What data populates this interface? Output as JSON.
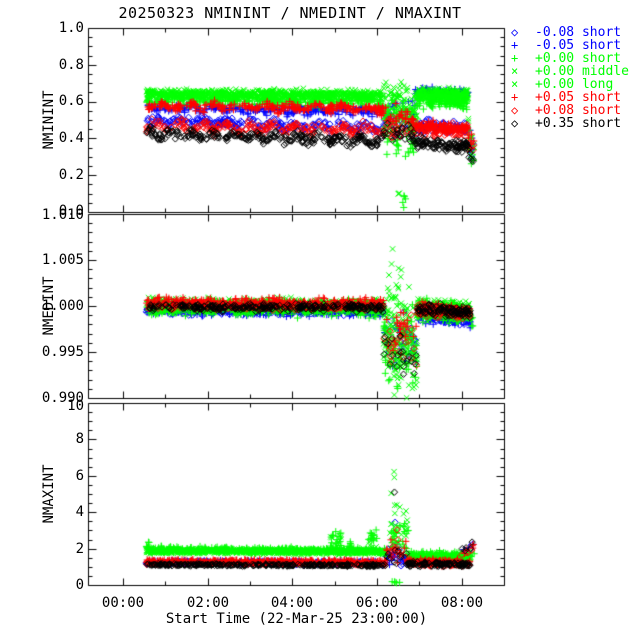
{
  "chart_data": {
    "type": "scatter",
    "title": "20250323 NMININT / NMEDINT / NMAXINT",
    "xlabel": "Start Time (22-Mar-25 23:00:00)",
    "x_axis_origin": "22-Mar-25 23:00:00",
    "xlim_hours": [
      0.17,
      10.0
    ],
    "x_ticks": [
      {
        "t": 1,
        "label": "00:00"
      },
      {
        "t": 3,
        "label": "02:00"
      },
      {
        "t": 5,
        "label": "04:00"
      },
      {
        "t": 7,
        "label": "06:00"
      },
      {
        "t": 9,
        "label": "08:00"
      }
    ],
    "x_minor_step_hours": 1,
    "grid": false,
    "legend_position": "right",
    "series": [
      {
        "label": "-0.08 short",
        "color": "#0000ff",
        "marker": "diamond",
        "glyph": "◇"
      },
      {
        "label": "-0.05 short",
        "color": "#0000ff",
        "marker": "plus",
        "glyph": "+"
      },
      {
        "label": "+0.00 short",
        "color": "#00ff00",
        "marker": "plus",
        "glyph": "+"
      },
      {
        "label": "+0.00 middle",
        "color": "#00ff00",
        "marker": "cross",
        "glyph": "×"
      },
      {
        "label": "+0.00 long",
        "color": "#00ff00",
        "marker": "cross",
        "glyph": "×"
      },
      {
        "label": "+0.05 short",
        "color": "#ff0000",
        "marker": "plus",
        "glyph": "+"
      },
      {
        "label": "+0.08 short",
        "color": "#ff0000",
        "marker": "diamond",
        "glyph": "◇"
      },
      {
        "label": "+0.35 short",
        "color": "#000000",
        "marker": "diamond",
        "glyph": "◇"
      }
    ],
    "panels": [
      {
        "name": "NMININT",
        "ylabel": "NMININT",
        "ylim": [
          0.0,
          1.0
        ],
        "y_minor_step": 0.05,
        "yticks": [
          {
            "v": 1.0,
            "label": "1.0"
          },
          {
            "v": 0.8,
            "label": "0.8"
          },
          {
            "v": 0.6,
            "label": "0.6"
          },
          {
            "v": 0.4,
            "label": "0.4"
          },
          {
            "v": 0.2,
            "label": "0.2"
          },
          {
            "v": 0.0,
            "label": "0.0"
          }
        ],
        "bands": [
          [
            [
              1.55,
              7.15,
              240,
              0.5,
              0.455,
              0.022,
              0.015,
              0.55
            ],
            [
              7.15,
              7.9,
              28,
              0.47,
              0.46,
              0.05
            ],
            [
              7.9,
              9.15,
              95,
              0.47,
              0.455,
              0.028
            ],
            [
              9.15,
              9.3,
              6,
              0.4,
              0.32,
              0.04
            ]
          ],
          [
            [
              1.55,
              7.15,
              240,
              0.565,
              0.545,
              0.018,
              0.01,
              0.5
            ],
            [
              7.15,
              7.9,
              28,
              0.54,
              0.55,
              0.05
            ],
            [
              7.9,
              9.15,
              105,
              0.655,
              0.645,
              0.02
            ],
            [
              9.15,
              9.3,
              6,
              0.45,
              0.34,
              0.05
            ]
          ],
          [
            [
              1.55,
              7.15,
              320,
              0.606,
              0.6,
              0.022
            ],
            [
              7.15,
              7.95,
              65,
              0.48,
              0.43,
              0.16
            ],
            [
              7.4,
              7.7,
              5,
              0.08,
              0.06,
              0.04
            ],
            [
              7.95,
              9.15,
              125,
              0.603,
              0.598,
              0.028
            ],
            [
              9.15,
              9.3,
              8,
              0.4,
              0.2,
              0.07
            ]
          ],
          [
            [
              1.55,
              7.15,
              420,
              0.636,
              0.63,
              0.018
            ],
            [
              7.15,
              7.95,
              65,
              0.56,
              0.52,
              0.12
            ],
            [
              7.45,
              7.65,
              3,
              0.12,
              0.1,
              0.05
            ],
            [
              7.95,
              9.15,
              155,
              0.636,
              0.626,
              0.024
            ],
            [
              9.15,
              9.3,
              7,
              0.45,
              0.28,
              0.06
            ]
          ],
          [
            [
              1.55,
              7.15,
              420,
              0.648,
              0.642,
              0.018
            ],
            [
              7.15,
              7.95,
              65,
              0.6,
              0.56,
              0.1
            ],
            [
              7.95,
              9.15,
              155,
              0.65,
              0.64,
              0.024
            ],
            [
              9.15,
              9.3,
              7,
              0.48,
              0.3,
              0.06
            ]
          ],
          [
            [
              1.55,
              7.15,
              280,
              0.578,
              0.565,
              0.018,
              0.012,
              0.6
            ],
            [
              7.15,
              7.9,
              28,
              0.52,
              0.5,
              0.05
            ],
            [
              7.9,
              9.15,
              105,
              0.465,
              0.455,
              0.022
            ],
            [
              9.15,
              9.3,
              6,
              0.42,
              0.36,
              0.04
            ]
          ],
          [
            [
              1.55,
              7.15,
              240,
              0.468,
              0.445,
              0.022,
              0.018,
              0.55
            ],
            [
              7.15,
              7.9,
              28,
              0.45,
              0.44,
              0.045
            ],
            [
              7.9,
              9.15,
              95,
              0.45,
              0.435,
              0.03
            ],
            [
              9.15,
              9.3,
              6,
              0.4,
              0.33,
              0.04
            ]
          ],
          [
            [
              1.55,
              7.15,
              280,
              0.425,
              0.385,
              0.02,
              0.016,
              0.5
            ],
            [
              7.15,
              7.9,
              28,
              0.43,
              0.42,
              0.035
            ],
            [
              7.9,
              9.15,
              105,
              0.372,
              0.358,
              0.025
            ],
            [
              9.15,
              9.3,
              6,
              0.33,
              0.27,
              0.03
            ]
          ]
        ]
      },
      {
        "name": "NMEDINT",
        "ylabel": "NMEDINT",
        "ylim": [
          0.99,
          1.01
        ],
        "y_minor_step": 0.001,
        "yticks": [
          {
            "v": 1.01,
            "label": "1.010"
          },
          {
            "v": 1.005,
            "label": "1.005"
          },
          {
            "v": 1.0,
            "label": "1.000"
          },
          {
            "v": 0.995,
            "label": "0.995"
          },
          {
            "v": 0.99,
            "label": "0.990"
          }
        ],
        "bands": [
          [
            [
              1.55,
              7.15,
              230,
              0.9996,
              0.9994,
              0.0004
            ],
            [
              7.15,
              7.95,
              22,
              0.997,
              0.996,
              0.0025
            ],
            [
              7.95,
              9.2,
              95,
              0.9992,
              0.9986,
              0.0006
            ]
          ],
          [
            [
              1.55,
              7.15,
              230,
              0.9995,
              0.9993,
              0.0004
            ],
            [
              7.15,
              7.95,
              22,
              0.996,
              0.995,
              0.003
            ],
            [
              7.95,
              9.2,
              95,
              0.9989,
              0.9984,
              0.0006
            ]
          ],
          [
            [
              1.55,
              7.15,
              320,
              0.9998,
              0.9997,
              0.0007
            ],
            [
              7.15,
              7.95,
              75,
              0.9975,
              0.995,
              0.004
            ],
            [
              7.95,
              9.2,
              135,
              0.9996,
              0.9992,
              0.0009
            ],
            [
              9.2,
              9.32,
              6,
              0.999,
              0.998,
              0.001
            ]
          ],
          [
            [
              1.55,
              7.15,
              420,
              1.0,
              0.9999,
              0.0006
            ],
            [
              7.15,
              7.95,
              75,
              0.998,
              0.9955,
              0.0045
            ],
            [
              7.3,
              7.6,
              6,
              1.0055,
              1.0035,
              0.0018
            ],
            [
              7.95,
              9.2,
              165,
              0.9997,
              0.9993,
              0.0008
            ]
          ],
          [
            [
              1.55,
              7.15,
              420,
              1.0001,
              1.0,
              0.0006
            ],
            [
              7.15,
              7.95,
              75,
              0.997,
              0.994,
              0.004
            ],
            [
              7.95,
              9.2,
              165,
              0.9998,
              0.9994,
              0.0008
            ]
          ],
          [
            [
              1.55,
              7.15,
              280,
              1.0004,
              1.0003,
              0.0004
            ],
            [
              7.15,
              7.95,
              22,
              0.998,
              0.997,
              0.002
            ],
            [
              7.95,
              9.2,
              105,
              0.9998,
              0.9994,
              0.0005
            ]
          ],
          [
            [
              1.55,
              7.15,
              230,
              1.0,
              0.9999,
              0.0003
            ],
            [
              7.15,
              7.95,
              22,
              0.9965,
              0.996,
              0.002
            ],
            [
              7.95,
              9.2,
              95,
              0.9996,
              0.9992,
              0.0005
            ]
          ],
          [
            [
              1.55,
              7.15,
              280,
              0.9999,
              0.9998,
              0.0003
            ],
            [
              7.15,
              7.95,
              22,
              0.996,
              0.9945,
              0.002
            ],
            [
              7.95,
              9.2,
              105,
              0.9997,
              0.9993,
              0.0005
            ]
          ]
        ]
      },
      {
        "name": "NMAXINT",
        "ylabel": "NMAXINT",
        "ylim": [
          0,
          10
        ],
        "y_minor_step": 0.5,
        "yticks": [
          {
            "v": 10,
            "label": "10"
          },
          {
            "v": 8,
            "label": "8"
          },
          {
            "v": 6,
            "label": "6"
          },
          {
            "v": 4,
            "label": "4"
          },
          {
            "v": 2,
            "label": "2"
          },
          {
            "v": 0,
            "label": "0"
          }
        ],
        "bands": [
          [
            [
              1.55,
              7.2,
              230,
              1.22,
              1.18,
              0.06
            ],
            [
              7.2,
              7.6,
              12,
              1.6,
              1.5,
              0.5
            ],
            [
              7.35,
              7.45,
              1,
              3.5,
              3.5,
              0.05
            ],
            [
              7.6,
              9.15,
              90,
              1.3,
              1.35,
              0.12
            ],
            [
              9.0,
              9.3,
              5,
              1.8,
              2.2,
              0.15
            ]
          ],
          [
            [
              1.55,
              7.2,
              230,
              1.28,
              1.25,
              0.06
            ],
            [
              7.2,
              7.6,
              12,
              1.7,
              1.6,
              0.4
            ],
            [
              7.6,
              9.15,
              95,
              1.45,
              1.5,
              0.1
            ],
            [
              9.0,
              9.3,
              5,
              1.9,
              2.2,
              0.15
            ]
          ],
          [
            [
              1.55,
              7.2,
              330,
              1.95,
              1.9,
              0.12
            ],
            [
              1.55,
              1.7,
              10,
              2.2,
              2.0,
              0.25
            ],
            [
              5.9,
              6.15,
              16,
              2.7,
              2.5,
              0.5
            ],
            [
              6.3,
              6.45,
              8,
              2.2,
              2.1,
              0.2
            ],
            [
              6.8,
              7.0,
              13,
              2.7,
              2.5,
              0.45
            ],
            [
              7.3,
              7.8,
              22,
              2.6,
              2.2,
              0.8
            ],
            [
              7.35,
              7.65,
              5,
              0.15,
              0.1,
              0.08
            ],
            [
              7.8,
              9.2,
              125,
              1.6,
              1.55,
              0.2
            ],
            [
              9.1,
              9.3,
              6,
              1.6,
              1.75,
              0.15
            ]
          ],
          [
            [
              1.55,
              7.2,
              430,
              1.9,
              1.85,
              0.1
            ],
            [
              5.9,
              6.15,
              9,
              2.4,
              2.2,
              0.3
            ],
            [
              6.8,
              7.0,
              7,
              2.3,
              2.2,
              0.3
            ],
            [
              7.3,
              7.75,
              18,
              3.8,
              3.0,
              1.3
            ],
            [
              7.35,
              7.45,
              2,
              6.0,
              5.8,
              0.3
            ],
            [
              7.75,
              9.2,
              155,
              1.55,
              1.5,
              0.18
            ]
          ],
          [
            [
              1.55,
              7.2,
              430,
              1.85,
              1.8,
              0.1
            ],
            [
              7.3,
              7.75,
              14,
              2.8,
              2.4,
              0.8
            ],
            [
              7.75,
              9.2,
              155,
              1.5,
              1.45,
              0.15
            ]
          ],
          [
            [
              1.55,
              7.2,
              280,
              1.32,
              1.28,
              0.07
            ],
            [
              7.2,
              7.7,
              14,
              2.0,
              1.8,
              0.5
            ],
            [
              7.7,
              9.2,
              105,
              1.25,
              1.2,
              0.15
            ],
            [
              9.0,
              9.3,
              5,
              1.8,
              2.1,
              0.15
            ]
          ],
          [
            [
              1.55,
              7.2,
              230,
              1.2,
              1.17,
              0.06
            ],
            [
              7.2,
              7.7,
              10,
              1.8,
              1.6,
              0.5
            ],
            [
              7.45,
              7.55,
              1,
              3.0,
              3.0,
              0.05
            ],
            [
              7.7,
              9.2,
              90,
              1.2,
              1.15,
              0.12
            ],
            [
              9.0,
              9.3,
              4,
              1.7,
              1.95,
              0.12
            ]
          ],
          [
            [
              1.55,
              7.2,
              280,
              1.12,
              1.08,
              0.05
            ],
            [
              7.2,
              7.7,
              10,
              1.7,
              1.5,
              0.4
            ],
            [
              7.4,
              7.45,
              1,
              5.15,
              5.15,
              0.05
            ],
            [
              7.7,
              9.2,
              105,
              1.15,
              1.12,
              0.1
            ],
            [
              9.0,
              9.3,
              5,
              1.9,
              2.3,
              0.15
            ]
          ]
        ]
      }
    ]
  }
}
